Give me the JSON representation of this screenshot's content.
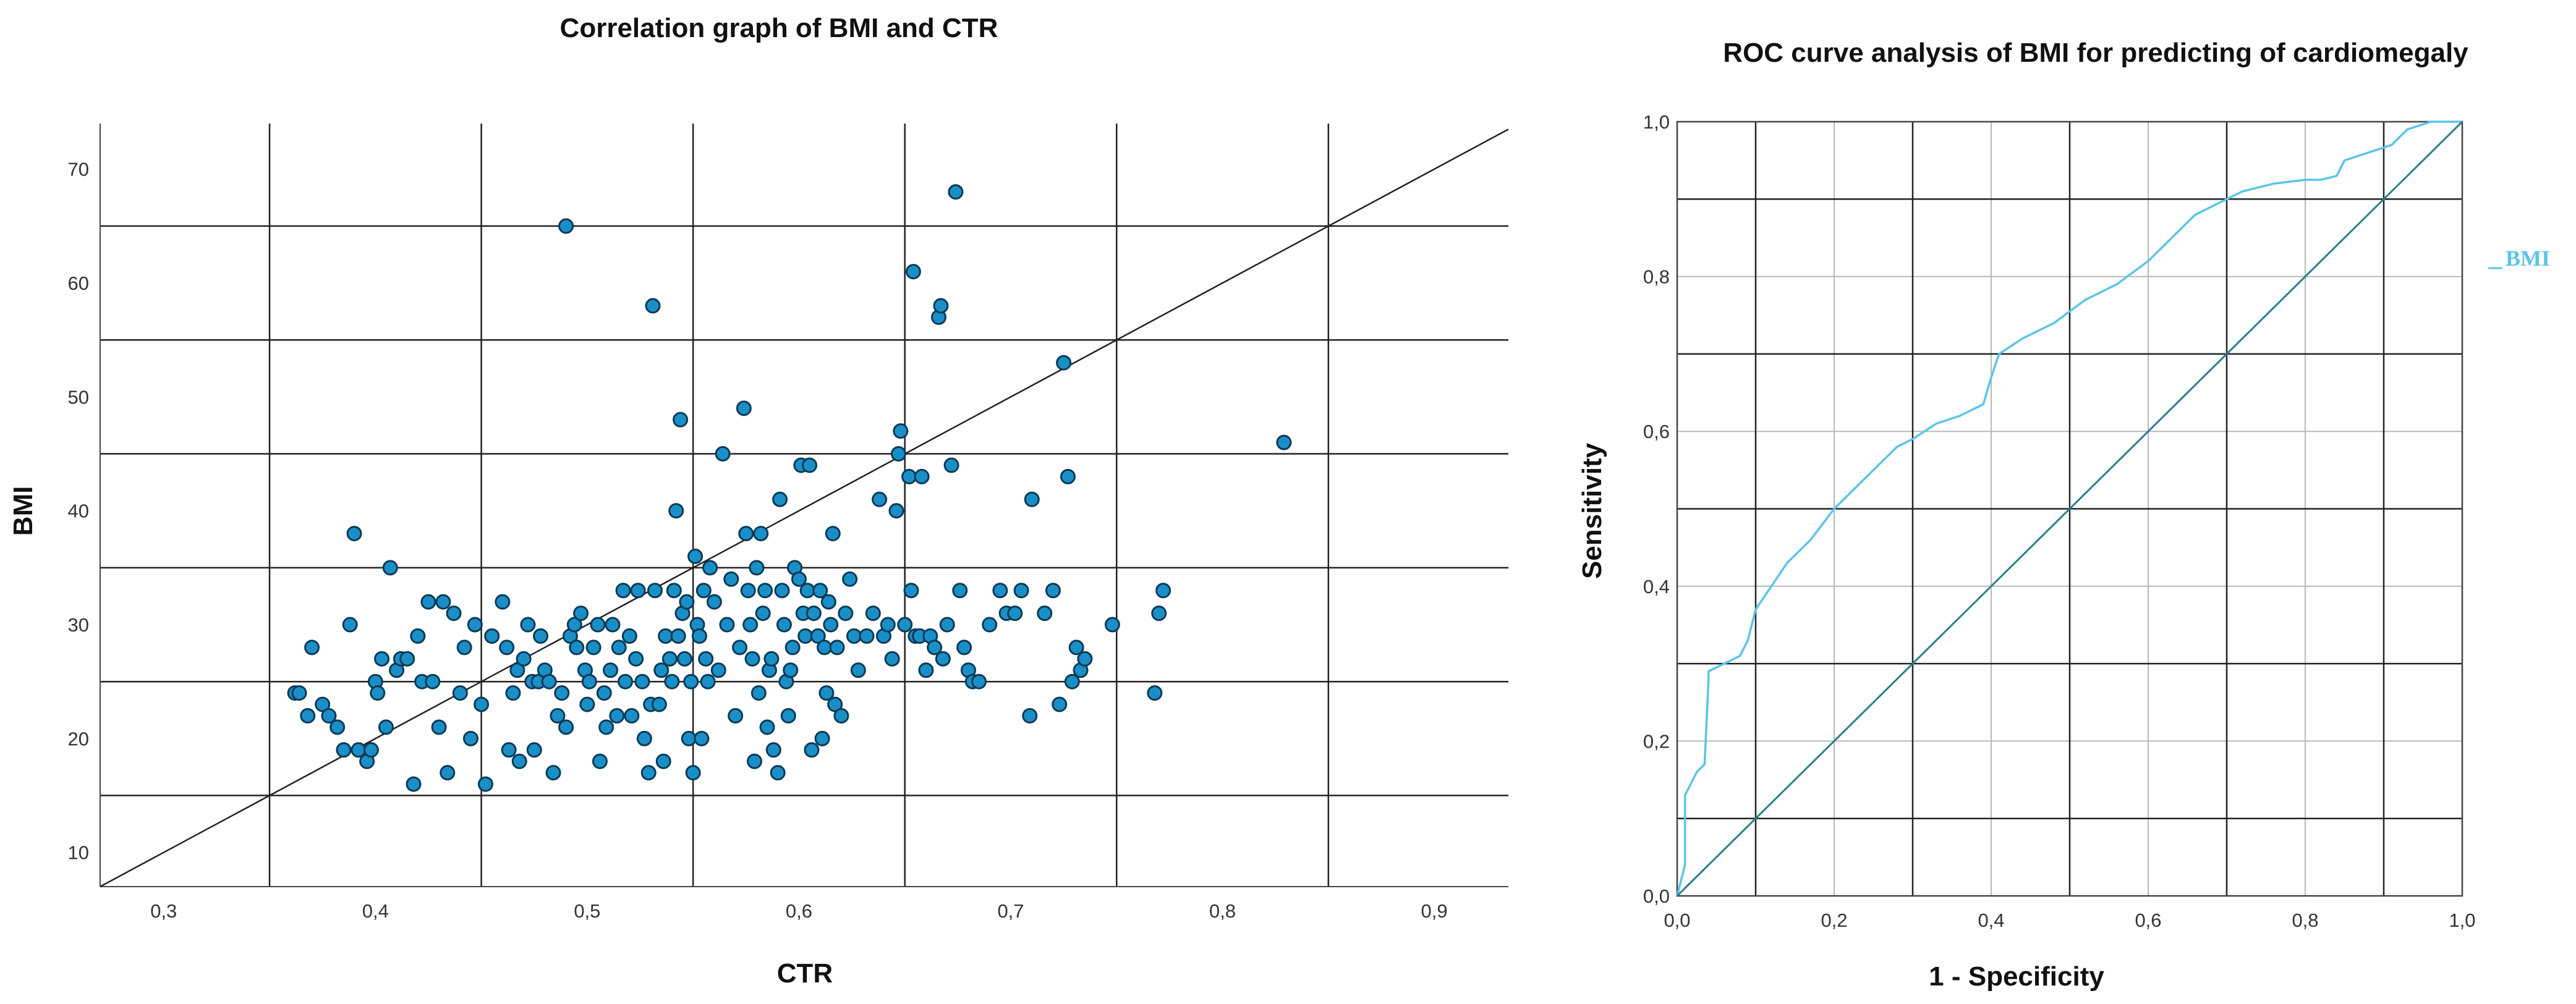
{
  "colors": {
    "scatter_fill": "#1a8fc7",
    "scatter_stroke": "#0b3a55",
    "roc_line": "#5bc4e6",
    "reference_line": "#2a7f87",
    "grid_dark": "#222222",
    "grid_light": "#b8b8b8",
    "axis_line": "#444444"
  },
  "chart_data": [
    {
      "type": "scatter",
      "title": "Correlation graph of BMI and CTR",
      "xlabel": "CTR",
      "ylabel": "BMI",
      "xlim": [
        0.27,
        0.935
      ],
      "ylim": [
        7,
        74
      ],
      "xticks": [
        0.3,
        0.4,
        0.5,
        0.6,
        0.7,
        0.8,
        0.9
      ],
      "xtick_labels": [
        "0,3",
        "0,4",
        "0,5",
        "0,6",
        "0,7",
        "0,8",
        "0,9"
      ],
      "yticks": [
        10,
        20,
        30,
        40,
        50,
        60,
        70
      ],
      "ytick_labels": [
        "10",
        "20",
        "30",
        "40",
        "50",
        "60",
        "70"
      ],
      "x_gridlines": [
        0.35,
        0.45,
        0.55,
        0.65,
        0.75,
        0.85
      ],
      "y_gridlines": [
        15,
        25,
        35,
        45,
        55,
        65
      ],
      "reference_line": [
        [
          0.27,
          7
        ],
        [
          0.935,
          73.5
        ]
      ],
      "points": [
        [
          0.362,
          24
        ],
        [
          0.364,
          24
        ],
        [
          0.368,
          22
        ],
        [
          0.37,
          28
        ],
        [
          0.375,
          23
        ],
        [
          0.378,
          22
        ],
        [
          0.382,
          21
        ],
        [
          0.385,
          19
        ],
        [
          0.388,
          30
        ],
        [
          0.39,
          38
        ],
        [
          0.392,
          19
        ],
        [
          0.396,
          18
        ],
        [
          0.398,
          19
        ],
        [
          0.4,
          25
        ],
        [
          0.401,
          24
        ],
        [
          0.403,
          27
        ],
        [
          0.405,
          21
        ],
        [
          0.407,
          35
        ],
        [
          0.41,
          26
        ],
        [
          0.412,
          27
        ],
        [
          0.415,
          27
        ],
        [
          0.418,
          16
        ],
        [
          0.42,
          29
        ],
        [
          0.422,
          25
        ],
        [
          0.425,
          32
        ],
        [
          0.427,
          25
        ],
        [
          0.43,
          21
        ],
        [
          0.432,
          32
        ],
        [
          0.434,
          17
        ],
        [
          0.437,
          31
        ],
        [
          0.44,
          24
        ],
        [
          0.442,
          28
        ],
        [
          0.445,
          20
        ],
        [
          0.447,
          30
        ],
        [
          0.45,
          23
        ],
        [
          0.452,
          16
        ],
        [
          0.455,
          29
        ],
        [
          0.46,
          32
        ],
        [
          0.462,
          28
        ],
        [
          0.463,
          19
        ],
        [
          0.465,
          24
        ],
        [
          0.467,
          26
        ],
        [
          0.468,
          18
        ],
        [
          0.47,
          27
        ],
        [
          0.472,
          30
        ],
        [
          0.474,
          25
        ],
        [
          0.475,
          19
        ],
        [
          0.477,
          25
        ],
        [
          0.478,
          29
        ],
        [
          0.48,
          26
        ],
        [
          0.482,
          25
        ],
        [
          0.484,
          17
        ],
        [
          0.486,
          22
        ],
        [
          0.488,
          24
        ],
        [
          0.49,
          21
        ],
        [
          0.492,
          29
        ],
        [
          0.49,
          65
        ],
        [
          0.494,
          30
        ],
        [
          0.495,
          28
        ],
        [
          0.497,
          31
        ],
        [
          0.499,
          26
        ],
        [
          0.5,
          23
        ],
        [
          0.501,
          25
        ],
        [
          0.503,
          28
        ],
        [
          0.505,
          30
        ],
        [
          0.506,
          18
        ],
        [
          0.508,
          24
        ],
        [
          0.509,
          21
        ],
        [
          0.511,
          26
        ],
        [
          0.512,
          30
        ],
        [
          0.514,
          22
        ],
        [
          0.515,
          28
        ],
        [
          0.517,
          33
        ],
        [
          0.518,
          25
        ],
        [
          0.52,
          29
        ],
        [
          0.521,
          22
        ],
        [
          0.523,
          27
        ],
        [
          0.524,
          33
        ],
        [
          0.526,
          25
        ],
        [
          0.527,
          20
        ],
        [
          0.529,
          17
        ],
        [
          0.53,
          23
        ],
        [
          0.531,
          58
        ],
        [
          0.532,
          33
        ],
        [
          0.534,
          23
        ],
        [
          0.535,
          26
        ],
        [
          0.536,
          18
        ],
        [
          0.537,
          29
        ],
        [
          0.539,
          27
        ],
        [
          0.54,
          25
        ],
        [
          0.541,
          33
        ],
        [
          0.542,
          40
        ],
        [
          0.543,
          29
        ],
        [
          0.544,
          48
        ],
        [
          0.545,
          31
        ],
        [
          0.546,
          27
        ],
        [
          0.547,
          32
        ],
        [
          0.548,
          20
        ],
        [
          0.549,
          25
        ],
        [
          0.55,
          17
        ],
        [
          0.551,
          36
        ],
        [
          0.552,
          30
        ],
        [
          0.553,
          29
        ],
        [
          0.554,
          20
        ],
        [
          0.555,
          33
        ],
        [
          0.556,
          27
        ],
        [
          0.557,
          25
        ],
        [
          0.558,
          35
        ],
        [
          0.56,
          32
        ],
        [
          0.562,
          26
        ],
        [
          0.564,
          45
        ],
        [
          0.566,
          30
        ],
        [
          0.568,
          34
        ],
        [
          0.57,
          22
        ],
        [
          0.572,
          28
        ],
        [
          0.574,
          49
        ],
        [
          0.575,
          38
        ],
        [
          0.576,
          33
        ],
        [
          0.577,
          30
        ],
        [
          0.578,
          27
        ],
        [
          0.579,
          18
        ],
        [
          0.58,
          35
        ],
        [
          0.581,
          24
        ],
        [
          0.582,
          38
        ],
        [
          0.583,
          31
        ],
        [
          0.584,
          33
        ],
        [
          0.585,
          21
        ],
        [
          0.586,
          26
        ],
        [
          0.587,
          27
        ],
        [
          0.588,
          19
        ],
        [
          0.59,
          17
        ],
        [
          0.591,
          41
        ],
        [
          0.592,
          33
        ],
        [
          0.593,
          30
        ],
        [
          0.594,
          25
        ],
        [
          0.595,
          22
        ],
        [
          0.596,
          26
        ],
        [
          0.597,
          28
        ],
        [
          0.598,
          35
        ],
        [
          0.6,
          34
        ],
        [
          0.601,
          44
        ],
        [
          0.602,
          31
        ],
        [
          0.603,
          29
        ],
        [
          0.604,
          33
        ],
        [
          0.605,
          44
        ],
        [
          0.606,
          19
        ],
        [
          0.607,
          31
        ],
        [
          0.609,
          29
        ],
        [
          0.61,
          33
        ],
        [
          0.611,
          20
        ],
        [
          0.612,
          28
        ],
        [
          0.613,
          24
        ],
        [
          0.614,
          32
        ],
        [
          0.615,
          30
        ],
        [
          0.616,
          38
        ],
        [
          0.617,
          23
        ],
        [
          0.618,
          28
        ],
        [
          0.62,
          22
        ],
        [
          0.622,
          31
        ],
        [
          0.624,
          34
        ],
        [
          0.626,
          29
        ],
        [
          0.628,
          26
        ],
        [
          0.632,
          29
        ],
        [
          0.635,
          31
        ],
        [
          0.638,
          41
        ],
        [
          0.64,
          29
        ],
        [
          0.642,
          30
        ],
        [
          0.644,
          27
        ],
        [
          0.646,
          40
        ],
        [
          0.647,
          45
        ],
        [
          0.648,
          47
        ],
        [
          0.65,
          30
        ],
        [
          0.652,
          43
        ],
        [
          0.653,
          33
        ],
        [
          0.654,
          61
        ],
        [
          0.655,
          29
        ],
        [
          0.657,
          29
        ],
        [
          0.658,
          43
        ],
        [
          0.66,
          26
        ],
        [
          0.662,
          29
        ],
        [
          0.664,
          28
        ],
        [
          0.666,
          57
        ],
        [
          0.667,
          58
        ],
        [
          0.668,
          27
        ],
        [
          0.67,
          30
        ],
        [
          0.672,
          44
        ],
        [
          0.674,
          68
        ],
        [
          0.676,
          33
        ],
        [
          0.678,
          28
        ],
        [
          0.68,
          26
        ],
        [
          0.682,
          25
        ],
        [
          0.685,
          25
        ],
        [
          0.69,
          30
        ],
        [
          0.695,
          33
        ],
        [
          0.698,
          31
        ],
        [
          0.702,
          31
        ],
        [
          0.705,
          33
        ],
        [
          0.709,
          22
        ],
        [
          0.71,
          41
        ],
        [
          0.716,
          31
        ],
        [
          0.72,
          33
        ],
        [
          0.723,
          23
        ],
        [
          0.725,
          53
        ],
        [
          0.727,
          43
        ],
        [
          0.729,
          25
        ],
        [
          0.731,
          28
        ],
        [
          0.733,
          26
        ],
        [
          0.735,
          27
        ],
        [
          0.748,
          30
        ],
        [
          0.768,
          24
        ],
        [
          0.77,
          31
        ],
        [
          0.772,
          33
        ],
        [
          0.829,
          46
        ]
      ]
    },
    {
      "type": "line",
      "title": "ROC curve analysis of BMI for predicting of cardiomegaly",
      "xlabel": "1 - Specificity",
      "ylabel": "Sensitivity",
      "xlim": [
        0,
        1
      ],
      "ylim": [
        0,
        1
      ],
      "xticks": [
        0,
        0.2,
        0.4,
        0.6,
        0.8,
        1.0
      ],
      "xtick_labels": [
        "0,0",
        "0,2",
        "0,4",
        "0,6",
        "0,8",
        "1,0"
      ],
      "yticks": [
        0,
        0.2,
        0.4,
        0.6,
        0.8,
        1.0
      ],
      "ytick_labels": [
        "0,0",
        "0,2",
        "0,4",
        "0,6",
        "0,8",
        "1,0"
      ],
      "dark_gridlines": [
        0.1,
        0.3,
        0.5,
        0.7,
        0.9
      ],
      "light_gridlines": [
        0.2,
        0.4,
        0.6,
        0.8
      ],
      "legend": [
        "BMI"
      ],
      "legend_position": "right",
      "series": [
        {
          "name": "BMI",
          "x": [
            0,
            0.005,
            0.01,
            0.01,
            0.015,
            0.02,
            0.025,
            0.035,
            0.04,
            0.04,
            0.06,
            0.08,
            0.09,
            0.1,
            0.12,
            0.14,
            0.17,
            0.2,
            0.22,
            0.25,
            0.28,
            0.3,
            0.33,
            0.36,
            0.39,
            0.4,
            0.41,
            0.44,
            0.48,
            0.52,
            0.56,
            0.6,
            0.63,
            0.66,
            0.7,
            0.72,
            0.76,
            0.8,
            0.82,
            0.84,
            0.85,
            0.88,
            0.91,
            0.93,
            0.96,
            1.0
          ],
          "y": [
            0,
            0.02,
            0.04,
            0.13,
            0.14,
            0.15,
            0.16,
            0.17,
            0.28,
            0.29,
            0.3,
            0.31,
            0.33,
            0.37,
            0.4,
            0.43,
            0.46,
            0.5,
            0.52,
            0.55,
            0.58,
            0.59,
            0.61,
            0.62,
            0.635,
            0.67,
            0.7,
            0.72,
            0.74,
            0.77,
            0.79,
            0.82,
            0.85,
            0.88,
            0.9,
            0.91,
            0.92,
            0.925,
            0.925,
            0.93,
            0.95,
            0.96,
            0.97,
            0.99,
            1.0,
            1.0
          ]
        },
        {
          "name": "reference",
          "x": [
            0,
            1
          ],
          "y": [
            0,
            1
          ]
        }
      ]
    }
  ]
}
